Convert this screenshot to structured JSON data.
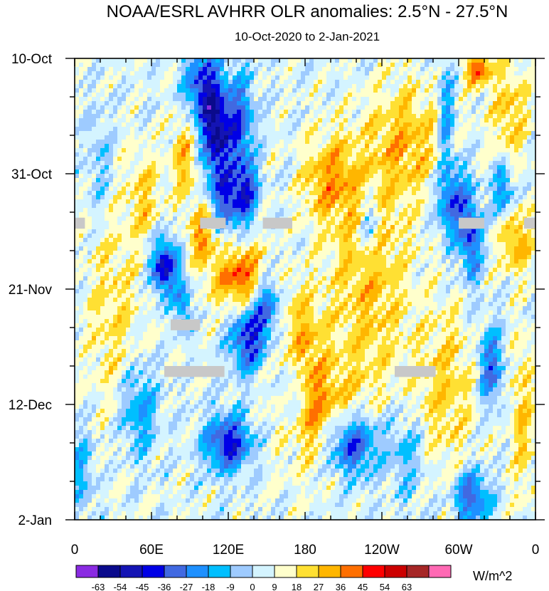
{
  "chart_data": {
    "type": "heatmap",
    "title": "NOAA/ESRL AVHRR OLR anomalies: 2.5°N - 27.5°N",
    "subtitle": "10-Oct-2020 to 2-Jan-2021",
    "x_ticks": [
      {
        "label": "0",
        "lon": 0
      },
      {
        "label": "60E",
        "lon": 60
      },
      {
        "label": "120E",
        "lon": 120
      },
      {
        "label": "180",
        "lon": 180
      },
      {
        "label": "120W",
        "lon": 240
      },
      {
        "label": "60W",
        "lon": 300
      },
      {
        "label": "0",
        "lon": 360
      }
    ],
    "y_ticks": [
      {
        "label": "10-Oct",
        "day": 0
      },
      {
        "label": "31-Oct",
        "day": 21
      },
      {
        "label": "21-Nov",
        "day": 42
      },
      {
        "label": "12-Dec",
        "day": 63
      },
      {
        "label": "2-Jan",
        "day": 84
      }
    ],
    "xlim": [
      0,
      360
    ],
    "ylim_days": [
      0,
      84
    ],
    "units": "W/m^2",
    "levels": [
      -63,
      -54,
      -45,
      -36,
      -27,
      -18,
      -9,
      0,
      9,
      18,
      27,
      36,
      45,
      54,
      63
    ],
    "colors": [
      "#8a2be2",
      "#0a0a8c",
      "#1414b4",
      "#0000e6",
      "#4169e1",
      "#1e90ff",
      "#00bfff",
      "#9ecbff",
      "#d4f4ff",
      "#ffffcc",
      "#ffe033",
      "#ffb600",
      "#ff6f00",
      "#ff0000",
      "#cc0000",
      "#a62626",
      "#ff69b4"
    ],
    "missing_color": "#c8c8c8",
    "missing_segments": [
      {
        "lon0": 0,
        "lon1": 8,
        "day0": 29,
        "day1": 31
      },
      {
        "lon0": 98,
        "lon1": 118,
        "day0": 29,
        "day1": 31
      },
      {
        "lon0": 147,
        "lon1": 170,
        "day0": 29,
        "day1": 31
      },
      {
        "lon0": 300,
        "lon1": 320,
        "day0": 29,
        "day1": 31
      },
      {
        "lon0": 351,
        "lon1": 360,
        "day0": 29,
        "day1": 31
      },
      {
        "lon0": 75,
        "lon1": 98,
        "day0": 47.5,
        "day1": 49.5
      },
      {
        "lon0": 70,
        "lon1": 117,
        "day0": 56,
        "day1": 58
      },
      {
        "lon0": 250,
        "lon1": 282,
        "day0": 56,
        "day1": 58
      }
    ],
    "features": [
      {
        "lon": 100,
        "day": 5,
        "ax": 14,
        "ad": 7,
        "amp": -45
      },
      {
        "lon": 110,
        "day": 14,
        "ax": 10,
        "ad": 8,
        "amp": -55
      },
      {
        "lon": 128,
        "day": 12,
        "ax": 12,
        "ad": 9,
        "amp": -40
      },
      {
        "lon": 120,
        "day": 26,
        "ax": 14,
        "ad": 6,
        "amp": -40
      },
      {
        "lon": 135,
        "day": 24,
        "ax": 8,
        "ad": 5,
        "amp": -35
      },
      {
        "lon": 70,
        "day": 38,
        "ax": 10,
        "ad": 5,
        "amp": -55
      },
      {
        "lon": 85,
        "day": 45,
        "ax": 6,
        "ad": 5,
        "amp": -30
      },
      {
        "lon": 150,
        "day": 45,
        "ax": 12,
        "ad": 6,
        "amp": -38
      },
      {
        "lon": 135,
        "day": 51,
        "ax": 14,
        "ad": 6,
        "amp": -45
      },
      {
        "lon": 120,
        "day": 70,
        "ax": 18,
        "ad": 5,
        "amp": -50
      },
      {
        "lon": 170,
        "day": 60,
        "ax": 10,
        "ad": 8,
        "amp": -25
      },
      {
        "lon": 215,
        "day": 70,
        "ax": 22,
        "ad": 6,
        "amp": -55
      },
      {
        "lon": 50,
        "day": 64,
        "ax": 14,
        "ad": 8,
        "amp": -28
      },
      {
        "lon": 295,
        "day": 26,
        "ax": 12,
        "ad": 7,
        "amp": -40
      },
      {
        "lon": 310,
        "day": 33,
        "ax": 8,
        "ad": 8,
        "amp": -40
      },
      {
        "lon": 335,
        "day": 24,
        "ax": 8,
        "ad": 5,
        "amp": -35
      },
      {
        "lon": 325,
        "day": 56,
        "ax": 10,
        "ad": 7,
        "amp": -38
      },
      {
        "lon": 310,
        "day": 80,
        "ax": 14,
        "ad": 5,
        "amp": -40
      },
      {
        "lon": 290,
        "day": 10,
        "ax": 6,
        "ad": 10,
        "amp": -30
      },
      {
        "lon": 230,
        "day": 30,
        "ax": 8,
        "ad": 6,
        "amp": -25
      },
      {
        "lon": 20,
        "day": 20,
        "ax": 10,
        "ad": 10,
        "amp": -15
      },
      {
        "lon": 5,
        "day": 75,
        "ax": 10,
        "ad": 8,
        "amp": -20
      },
      {
        "lon": 260,
        "day": 72,
        "ax": 14,
        "ad": 8,
        "amp": -18
      },
      {
        "lon": 130,
        "day": 40,
        "ax": 20,
        "ad": 6,
        "amp": 40
      },
      {
        "lon": 100,
        "day": 32,
        "ax": 10,
        "ad": 6,
        "amp": 30
      },
      {
        "lon": 195,
        "day": 66,
        "ax": 30,
        "ad": 9,
        "amp": 32
      },
      {
        "lon": 175,
        "day": 52,
        "ax": 20,
        "ad": 10,
        "amp": 25
      },
      {
        "lon": 230,
        "day": 40,
        "ax": 30,
        "ad": 20,
        "amp": 22
      },
      {
        "lon": 260,
        "day": 15,
        "ax": 30,
        "ad": 10,
        "amp": 22
      },
      {
        "lon": 200,
        "day": 22,
        "ax": 22,
        "ad": 8,
        "amp": 25
      },
      {
        "lon": 345,
        "day": 33,
        "ax": 12,
        "ad": 6,
        "amp": 28
      },
      {
        "lon": 340,
        "day": 10,
        "ax": 14,
        "ad": 10,
        "amp": 20
      },
      {
        "lon": 30,
        "day": 45,
        "ax": 20,
        "ad": 20,
        "amp": 15
      },
      {
        "lon": 290,
        "day": 60,
        "ax": 25,
        "ad": 15,
        "amp": 18
      },
      {
        "lon": 350,
        "day": 65,
        "ax": 10,
        "ad": 15,
        "amp": 18
      },
      {
        "lon": 55,
        "day": 25,
        "ax": 12,
        "ad": 8,
        "amp": 18
      },
      {
        "lon": 315,
        "day": 2,
        "ax": 10,
        "ad": 3,
        "amp": 38
      },
      {
        "lon": 85,
        "day": 18,
        "ax": 10,
        "ad": 8,
        "amp": 22
      }
    ]
  }
}
